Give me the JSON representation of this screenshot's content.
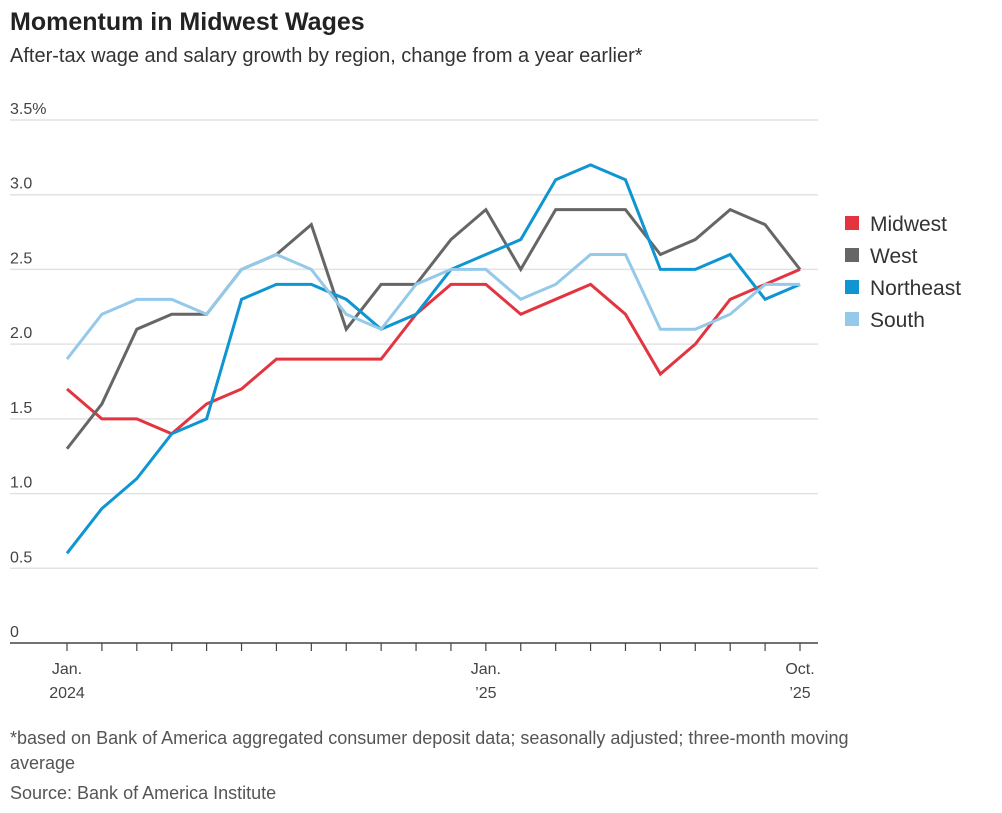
{
  "title": "Momentum in Midwest Wages",
  "subtitle": "After-tax wage and salary growth by region, change from a year earlier*",
  "footnote_1": "*based on Bank of America aggregated consumer deposit data; seasonally adjusted; three-month moving",
  "footnote_2": "average",
  "source": "Source: Bank of America Institute",
  "chart_data": {
    "type": "line",
    "x": [
      "2024-01",
      "2024-02",
      "2024-03",
      "2024-04",
      "2024-05",
      "2024-06",
      "2024-07",
      "2024-08",
      "2024-09",
      "2024-10",
      "2024-11",
      "2024-12",
      "2025-01",
      "2025-02",
      "2025-03",
      "2025-04",
      "2025-05",
      "2025-06",
      "2025-07",
      "2025-08",
      "2025-09",
      "2025-10"
    ],
    "ylim": [
      0,
      3.5
    ],
    "yticks": [
      "0",
      "0.5",
      "1.0",
      "1.5",
      "2.0",
      "2.5",
      "3.0",
      "3.5%"
    ],
    "ytick_values": [
      0,
      0.5,
      1,
      1.5,
      2,
      2.5,
      3,
      3.5
    ],
    "xtick_labels": [
      {
        "index": 0,
        "line1": "Jan.",
        "line2": "2024"
      },
      {
        "index": 12,
        "line1": "Jan.",
        "line2": "’25"
      },
      {
        "index": 21,
        "line1": "Oct.",
        "line2": "’25"
      }
    ],
    "grid": true,
    "legend_position": "right",
    "series": [
      {
        "name": "Midwest",
        "color": "#e3343f",
        "values": [
          1.7,
          1.5,
          1.5,
          1.4,
          1.6,
          1.7,
          1.9,
          1.9,
          1.9,
          1.9,
          2.2,
          2.4,
          2.4,
          2.2,
          2.3,
          2.4,
          2.2,
          1.8,
          2.0,
          2.3,
          2.4,
          2.5
        ]
      },
      {
        "name": "West",
        "color": "#666666",
        "values": [
          1.3,
          1.6,
          2.1,
          2.2,
          2.2,
          2.5,
          2.6,
          2.8,
          2.1,
          2.4,
          2.4,
          2.7,
          2.9,
          2.5,
          2.9,
          2.9,
          2.9,
          2.6,
          2.7,
          2.9,
          2.8,
          2.5
        ]
      },
      {
        "name": "Northeast",
        "color": "#0f95d1",
        "values": [
          0.6,
          0.9,
          1.1,
          1.4,
          1.5,
          2.3,
          2.4,
          2.4,
          2.3,
          2.1,
          2.2,
          2.5,
          2.6,
          2.7,
          3.1,
          3.2,
          3.1,
          2.5,
          2.5,
          2.6,
          2.3,
          2.4
        ]
      },
      {
        "name": "South",
        "color": "#94c9e9",
        "values": [
          1.9,
          2.2,
          2.3,
          2.3,
          2.2,
          2.5,
          2.6,
          2.5,
          2.2,
          2.1,
          2.4,
          2.5,
          2.5,
          2.3,
          2.4,
          2.6,
          2.6,
          2.1,
          2.1,
          2.2,
          2.4,
          2.4
        ]
      }
    ]
  }
}
